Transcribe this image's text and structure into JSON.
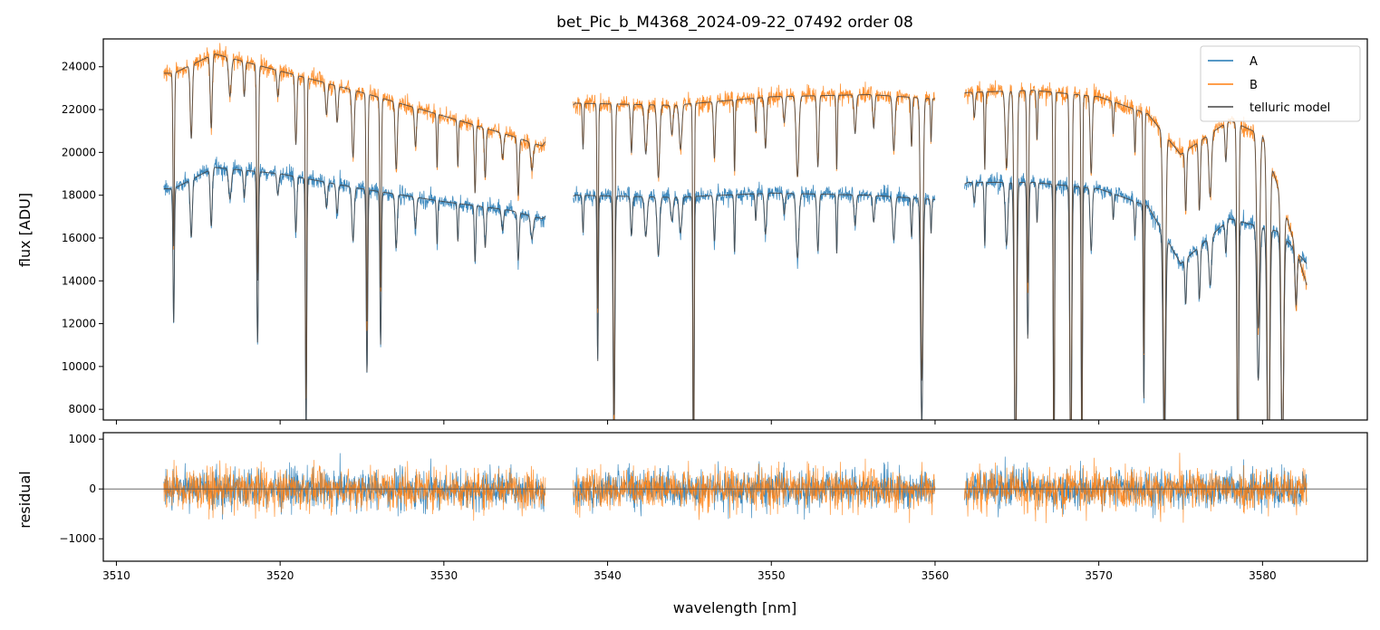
{
  "chart_data": [
    {
      "type": "line",
      "title": "bet_Pic_b_M4368_2024-09-22_07492  order 08",
      "xlabel": "",
      "ylabel": "flux [ADU]",
      "xlim": [
        3509.2,
        3586.4
      ],
      "ylim": [
        7500,
        25300
      ],
      "yticks": [
        8000,
        10000,
        12000,
        14000,
        16000,
        18000,
        20000,
        22000,
        24000
      ],
      "ytick_labels": [
        "8000",
        "10000",
        "12000",
        "14000",
        "16000",
        "18000",
        "20000",
        "22000",
        "24000"
      ],
      "xticks": [
        3510,
        3520,
        3530,
        3540,
        3550,
        3560,
        3570,
        3580
      ],
      "grid": false,
      "legend_position": "top-right",
      "segments": [
        [
          3512.9,
          3536.2
        ],
        [
          3537.9,
          3560.0
        ],
        [
          3561.8,
          3582.7
        ]
      ],
      "series": [
        {
          "name": "A",
          "color": "#1f77b4",
          "level_x": [
            3513.5,
            3516,
            3520,
            3525,
            3530,
            3534,
            3536,
            3538,
            3544,
            3550,
            3556,
            3560,
            3562,
            3566,
            3570,
            3573,
            3575,
            3578,
            3581,
            3582.7
          ],
          "level_y": [
            18300,
            19300,
            19000,
            18300,
            17700,
            17300,
            16900,
            18000,
            17900,
            18100,
            18000,
            17800,
            18600,
            18600,
            18300,
            17500,
            14800,
            16900,
            16300,
            14800
          ]
        },
        {
          "name": "B",
          "color": "#ff7f0e",
          "level_x": [
            3513.5,
            3516,
            3520,
            3525,
            3530,
            3534,
            3536,
            3538,
            3544,
            3550,
            3556,
            3560,
            3562,
            3566,
            3570,
            3573,
            3575,
            3578,
            3580,
            3582.7
          ],
          "level_y": [
            23700,
            24600,
            23800,
            22800,
            21700,
            20800,
            20300,
            22300,
            22200,
            22600,
            22700,
            22500,
            22800,
            22900,
            22600,
            21800,
            19900,
            21500,
            20800,
            13800
          ]
        },
        {
          "name": "telluric model",
          "color": "#444444"
        }
      ]
    },
    {
      "type": "line",
      "title": "",
      "xlabel": "wavelength [nm]",
      "ylabel": "residual",
      "xlim": [
        3509.2,
        3586.4
      ],
      "ylim": [
        -1450,
        1130
      ],
      "yticks": [
        -1000,
        0,
        1000
      ],
      "ytick_labels": [
        "−1000",
        "0",
        "1000"
      ],
      "xticks": [
        3510,
        3520,
        3530,
        3540,
        3550,
        3560,
        3570,
        3580
      ],
      "xtick_labels": [
        "3510",
        "3520",
        "3530",
        "3540",
        "3550",
        "3560",
        "3570",
        "3580"
      ],
      "zero_line": true,
      "series": [
        {
          "name": "A",
          "color": "#1f77b4",
          "typical_amplitude": 350
        },
        {
          "name": "B",
          "color": "#ff7f0e",
          "typical_amplitude": 380
        }
      ]
    }
  ]
}
